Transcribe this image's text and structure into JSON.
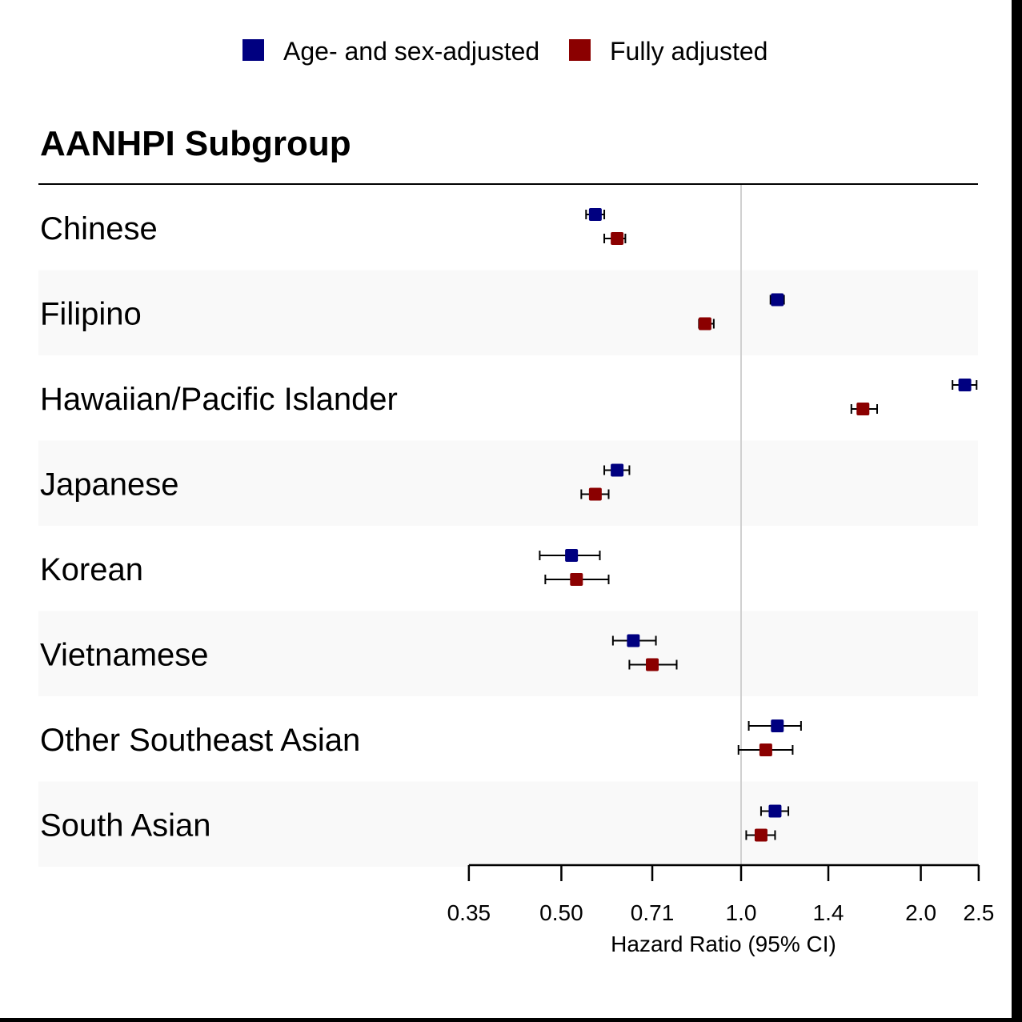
{
  "chart_data": {
    "type": "forest",
    "title": "",
    "column_header": "AANHPI Subgroup",
    "xlabel": "Hazard Ratio (95% CI)",
    "x_scale": "log",
    "xlim": [
      0.35,
      2.5
    ],
    "x_ticks": [
      0.35,
      0.5,
      0.71,
      1.0,
      1.4,
      2.0,
      2.5
    ],
    "x_tick_labels": [
      "0.35",
      "0.50",
      "0.71",
      "1.0",
      "1.4",
      "2.0",
      "2.5"
    ],
    "reference_line": 1.0,
    "legend": {
      "placement": "top",
      "entries": [
        "Age- and sex-adjusted",
        "Fully adjusted"
      ]
    },
    "colors": {
      "Age- and sex-adjusted": "#000080",
      "Fully adjusted": "#8b0000",
      "row_shade": "#f9f9f9",
      "reference_line": "#d0d0d0"
    },
    "categories": [
      "Chinese",
      "Filipino",
      "Hawaiian/Pacific Islander",
      "Japanese",
      "Korean",
      "Vietnamese",
      "Other Southeast Asian",
      "South Asian"
    ],
    "series": [
      {
        "name": "Age- and sex-adjusted",
        "hr": [
          0.57,
          1.15,
          2.37,
          0.62,
          0.52,
          0.66,
          1.15,
          1.14
        ],
        "lower": [
          0.55,
          1.12,
          2.26,
          0.59,
          0.46,
          0.61,
          1.03,
          1.08
        ],
        "upper": [
          0.59,
          1.18,
          2.48,
          0.65,
          0.58,
          0.72,
          1.26,
          1.2
        ]
      },
      {
        "name": "Fully adjusted",
        "hr": [
          0.62,
          0.87,
          1.6,
          0.57,
          0.53,
          0.71,
          1.1,
          1.08
        ],
        "lower": [
          0.59,
          0.85,
          1.53,
          0.54,
          0.47,
          0.65,
          0.99,
          1.02
        ],
        "upper": [
          0.64,
          0.9,
          1.69,
          0.6,
          0.6,
          0.78,
          1.22,
          1.14
        ]
      }
    ]
  }
}
